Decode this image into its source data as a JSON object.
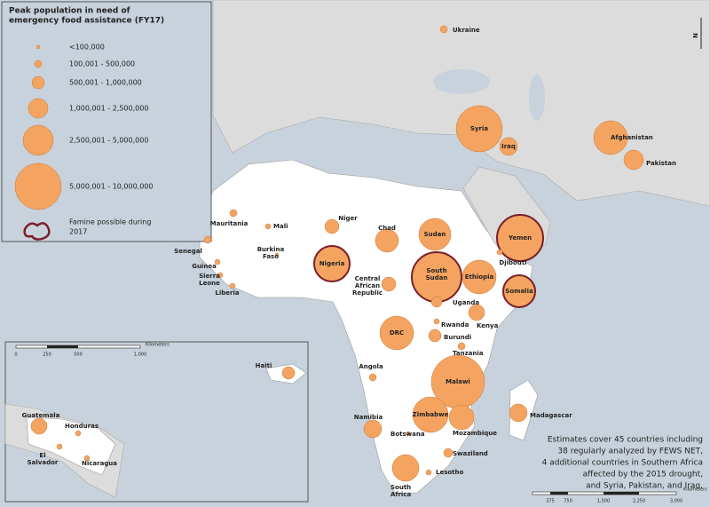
{
  "legend": {
    "title": [
      "Peak population in need of",
      "emergency food assistance (FY17)"
    ],
    "items": [
      "<100,000",
      "100,001 - 500,000",
      "500,001 - 1,000,000",
      "1,000,001 - 2,500,000",
      "2,500,001 - 5,000,000",
      "5,000,001 - 10,000,000"
    ],
    "famine": [
      "Famine possible during",
      "2017"
    ]
  },
  "countries": [
    {
      "label": [
        "Ukraine"
      ]
    },
    {
      "label": [
        "Syria"
      ]
    },
    {
      "label": [
        "Iraq"
      ]
    },
    {
      "label": [
        "Afghanistan"
      ]
    },
    {
      "label": [
        "Pakistan"
      ]
    },
    {
      "label": [
        "Mauritania"
      ]
    },
    {
      "label": [
        "Mali"
      ]
    },
    {
      "label": [
        "Niger"
      ]
    },
    {
      "label": [
        "Chad"
      ]
    },
    {
      "label": [
        "Sudan"
      ]
    },
    {
      "label": [
        "Yemen"
      ],
      "famine": true
    },
    {
      "label": [
        "Senegal"
      ]
    },
    {
      "label": [
        "Burkina",
        "Faso"
      ]
    },
    {
      "label": [
        "Nigeria"
      ],
      "famine": true
    },
    {
      "label": [
        "Djibouti"
      ]
    },
    {
      "label": [
        "Guinea"
      ]
    },
    {
      "label": [
        "Sierra",
        "Leone"
      ]
    },
    {
      "label": [
        "Liberia"
      ]
    },
    {
      "label": [
        "Central",
        "African",
        "Republic"
      ]
    },
    {
      "label": [
        "South",
        "Sudan"
      ],
      "famine": true
    },
    {
      "label": [
        "Ethiopia"
      ]
    },
    {
      "label": [
        "Somalia"
      ],
      "famine": true
    },
    {
      "label": [
        "Uganda"
      ]
    },
    {
      "label": [
        "Rwanda"
      ]
    },
    {
      "label": [
        "Kenya"
      ]
    },
    {
      "label": [
        "DRC"
      ]
    },
    {
      "label": [
        "Burundi"
      ]
    },
    {
      "label": [
        "Tanzania"
      ]
    },
    {
      "label": [
        "Angola"
      ]
    },
    {
      "label": [
        "Malawi"
      ]
    },
    {
      "label": [
        "Madagascar"
      ]
    },
    {
      "label": [
        "Zimbabwe"
      ]
    },
    {
      "label": [
        "Mozambique"
      ]
    },
    {
      "label": [
        "Namibia"
      ]
    },
    {
      "label": [
        "Botswana"
      ]
    },
    {
      "label": [
        "Swaziland"
      ]
    },
    {
      "label": [
        "Lesotho"
      ]
    },
    {
      "label": [
        "South",
        "Africa"
      ]
    }
  ],
  "inset": {
    "countries": [
      {
        "label": [
          "Haiti"
        ]
      },
      {
        "label": [
          "Guatemala"
        ]
      },
      {
        "label": [
          "Honduras"
        ]
      },
      {
        "label": [
          "El",
          "Salvador"
        ]
      },
      {
        "label": [
          "Nicaragua"
        ]
      }
    ],
    "scale": {
      "ticks": [
        "0",
        "250",
        "500",
        "1,000"
      ],
      "unit": "Kilometers"
    }
  },
  "scale": {
    "ticks": [
      "375",
      "750",
      "1,500",
      "2,250",
      "3,000"
    ],
    "unit": "Kilometers"
  },
  "note": [
    "Estimates cover 45 countries including",
    "38 regularly analyzed by FEWS NET,",
    "4 additional countries in Southern Africa",
    "affected by the 2015 drought,",
    "and Syria, Pakistan, and Iraq."
  ],
  "north": "N"
}
